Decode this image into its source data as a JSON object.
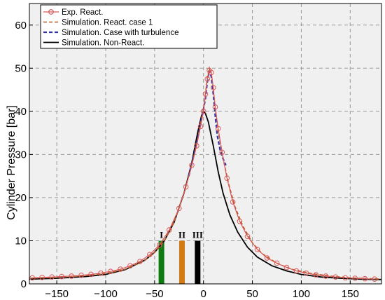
{
  "chart_data": {
    "type": "line",
    "xlabel": "",
    "ylabel": "Cylinder Pressure [bar]",
    "xlim": [
      -178,
      182
    ],
    "ylim": [
      0,
      65
    ],
    "xticks": [
      -150,
      -100,
      -50,
      0,
      50,
      100,
      150
    ],
    "yticks": [
      0,
      10,
      20,
      30,
      40,
      50,
      60
    ],
    "grid": true,
    "legend_position": "top-left",
    "colors": {
      "background": "#f0f0f0",
      "grid": "#9a9a9a",
      "exp": "#d85a5a",
      "case1": "#b85a20",
      "turb": "#3333aa",
      "nonreact": "#000000"
    },
    "series": [
      {
        "name": "Exp. React.",
        "style": "circle-line",
        "points": [
          [
            -175,
            1.4
          ],
          [
            -165,
            1.5
          ],
          [
            -155,
            1.6
          ],
          [
            -145,
            1.7
          ],
          [
            -135,
            1.8
          ],
          [
            -125,
            2.0
          ],
          [
            -115,
            2.2
          ],
          [
            -105,
            2.5
          ],
          [
            -95,
            2.9
          ],
          [
            -85,
            3.4
          ],
          [
            -75,
            4.2
          ],
          [
            -65,
            5.2
          ],
          [
            -55,
            6.8
          ],
          [
            -45,
            9.0
          ],
          [
            -35,
            12.5
          ],
          [
            -25,
            17.5
          ],
          [
            -18,
            22.5
          ],
          [
            -12,
            27.5
          ],
          [
            -7,
            32.0
          ],
          [
            -3,
            36.5
          ],
          [
            0,
            40.0
          ],
          [
            2,
            44.0
          ],
          [
            4,
            47.5
          ],
          [
            6,
            49.5
          ],
          [
            8,
            49.0
          ],
          [
            10,
            45.5
          ],
          [
            12,
            41.0
          ],
          [
            15,
            36.0
          ],
          [
            19,
            30.5
          ],
          [
            24,
            24.5
          ],
          [
            30,
            19.0
          ],
          [
            37,
            14.5
          ],
          [
            45,
            11.0
          ],
          [
            55,
            8.0
          ],
          [
            65,
            6.0
          ],
          [
            75,
            4.8
          ],
          [
            85,
            3.8
          ],
          [
            95,
            3.0
          ],
          [
            105,
            2.5
          ],
          [
            115,
            2.1
          ],
          [
            125,
            1.8
          ],
          [
            135,
            1.6
          ],
          [
            145,
            1.4
          ],
          [
            155,
            1.3
          ],
          [
            165,
            1.2
          ],
          [
            175,
            1.1
          ]
        ]
      },
      {
        "name": "Simulation. React. case 1",
        "style": "dashed",
        "points": [
          [
            -178,
            1.3
          ],
          [
            -150,
            1.5
          ],
          [
            -120,
            1.9
          ],
          [
            -100,
            2.4
          ],
          [
            -80,
            3.4
          ],
          [
            -60,
            5.5
          ],
          [
            -50,
            7.3
          ],
          [
            -40,
            10.0
          ],
          [
            -30,
            14.3
          ],
          [
            -20,
            21.0
          ],
          [
            -12,
            27.5
          ],
          [
            -6,
            33.5
          ],
          [
            -2,
            38.5
          ],
          [
            0,
            40.5
          ],
          [
            2,
            44.0
          ],
          [
            4,
            48.0
          ],
          [
            6,
            50.0
          ],
          [
            8,
            48.5
          ],
          [
            10,
            45.0
          ],
          [
            12,
            40.5
          ],
          [
            15,
            35.5
          ],
          [
            20,
            29.0
          ],
          [
            26,
            23.0
          ],
          [
            32,
            18.0
          ],
          [
            40,
            13.5
          ],
          [
            50,
            9.5
          ],
          [
            60,
            7.0
          ],
          [
            75,
            4.8
          ],
          [
            90,
            3.4
          ],
          [
            110,
            2.4
          ],
          [
            130,
            1.8
          ],
          [
            150,
            1.4
          ],
          [
            182,
            1.1
          ]
        ]
      },
      {
        "name": "Simulation. Case with turbulence",
        "style": "dashed",
        "points": [
          [
            -15,
            25.0
          ],
          [
            -8,
            31.5
          ],
          [
            -3,
            37.0
          ],
          [
            0,
            40.5
          ],
          [
            2,
            43.0
          ],
          [
            4,
            47.0
          ],
          [
            6,
            49.5
          ],
          [
            8,
            48.0
          ],
          [
            10,
            44.0
          ],
          [
            12,
            39.0
          ],
          [
            14,
            34.5
          ],
          [
            17,
            31.0
          ],
          [
            20,
            29.0
          ],
          [
            23,
            27.5
          ]
        ]
      },
      {
        "name": "Simulation. Non-React.",
        "style": "solid",
        "points": [
          [
            -178,
            1.1
          ],
          [
            -150,
            1.3
          ],
          [
            -120,
            1.7
          ],
          [
            -100,
            2.2
          ],
          [
            -80,
            3.3
          ],
          [
            -60,
            5.5
          ],
          [
            -50,
            7.3
          ],
          [
            -40,
            10.0
          ],
          [
            -30,
            14.3
          ],
          [
            -20,
            21.0
          ],
          [
            -12,
            28.0
          ],
          [
            -6,
            35.0
          ],
          [
            -2,
            39.0
          ],
          [
            0,
            40.0
          ],
          [
            2,
            39.5
          ],
          [
            5,
            37.5
          ],
          [
            10,
            32.0
          ],
          [
            15,
            26.0
          ],
          [
            20,
            21.0
          ],
          [
            27,
            16.0
          ],
          [
            35,
            12.0
          ],
          [
            45,
            8.5
          ],
          [
            55,
            6.2
          ],
          [
            70,
            4.2
          ],
          [
            85,
            3.0
          ],
          [
            100,
            2.2
          ],
          [
            120,
            1.6
          ],
          [
            140,
            1.3
          ],
          [
            160,
            1.1
          ],
          [
            182,
            1.0
          ]
        ]
      }
    ],
    "markers": [
      {
        "label": "I",
        "x": -43,
        "height": 10,
        "color": "#0f7a0f"
      },
      {
        "label": "II",
        "x": -22,
        "height": 10,
        "color": "#d27a14"
      },
      {
        "label": "III",
        "x": -6,
        "height": 10,
        "color": "#000000"
      }
    ]
  }
}
